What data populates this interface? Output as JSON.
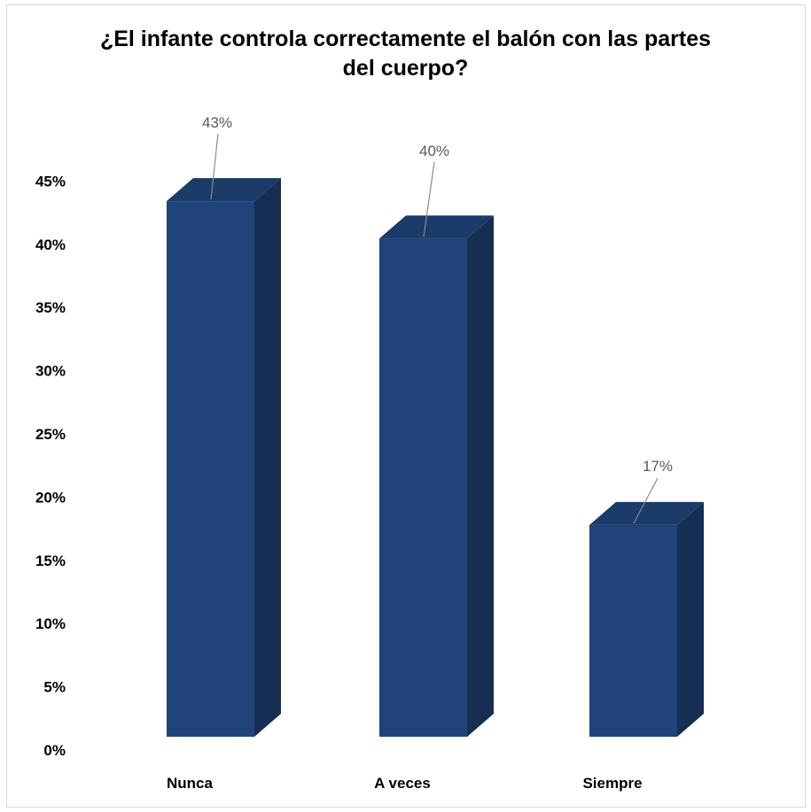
{
  "chart_data": {
    "type": "bar",
    "title": "¿El infante controla correctamente el balón con las partes\ndel cuerpo?",
    "categories": [
      "Nunca",
      "A veces",
      "Siempre"
    ],
    "values": [
      43,
      40,
      17
    ],
    "data_labels": [
      "43%",
      "40%",
      "17%"
    ],
    "ylim": [
      0,
      45
    ],
    "yticks": [
      "0%",
      "5%",
      "10%",
      "15%",
      "20%",
      "25%",
      "30%",
      "35%",
      "40%",
      "45%"
    ],
    "xlabel": "",
    "ylabel": "",
    "grid": false,
    "legend": "none",
    "style": "3d-column"
  },
  "colors": {
    "bar_front": "#1f4479",
    "bar_top": "#1b3b6a",
    "bar_side": "#152e52",
    "leader_line": "#8c8c8c",
    "border": "#d9d9d9"
  }
}
